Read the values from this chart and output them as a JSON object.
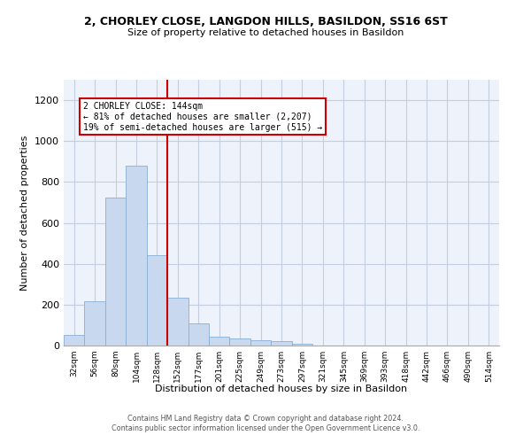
{
  "title1": "2, CHORLEY CLOSE, LANGDON HILLS, BASILDON, SS16 6ST",
  "title2": "Size of property relative to detached houses in Basildon",
  "xlabel": "Distribution of detached houses by size in Basildon",
  "ylabel": "Number of detached properties",
  "bar_color": "#c8d9ef",
  "bar_edge_color": "#88afd4",
  "categories": [
    "32sqm",
    "56sqm",
    "80sqm",
    "104sqm",
    "128sqm",
    "152sqm",
    "177sqm",
    "201sqm",
    "225sqm",
    "249sqm",
    "273sqm",
    "297sqm",
    "321sqm",
    "345sqm",
    "369sqm",
    "393sqm",
    "418sqm",
    "442sqm",
    "466sqm",
    "490sqm",
    "514sqm"
  ],
  "values": [
    50,
    215,
    725,
    880,
    440,
    235,
    110,
    45,
    35,
    25,
    20,
    10,
    0,
    0,
    0,
    0,
    0,
    0,
    0,
    0,
    0
  ],
  "ylim": [
    0,
    1300
  ],
  "yticks": [
    0,
    200,
    400,
    600,
    800,
    1000,
    1200
  ],
  "property_line_x": 4.5,
  "annotation_text1": "2 CHORLEY CLOSE: 144sqm",
  "annotation_text2": "← 81% of detached houses are smaller (2,207)",
  "annotation_text3": "19% of semi-detached houses are larger (515) →",
  "vline_color": "#cc0000",
  "footer1": "Contains HM Land Registry data © Crown copyright and database right 2024.",
  "footer2": "Contains public sector information licensed under the Open Government Licence v3.0.",
  "bg_color": "#eef2fa",
  "grid_color": "#c5cde0"
}
